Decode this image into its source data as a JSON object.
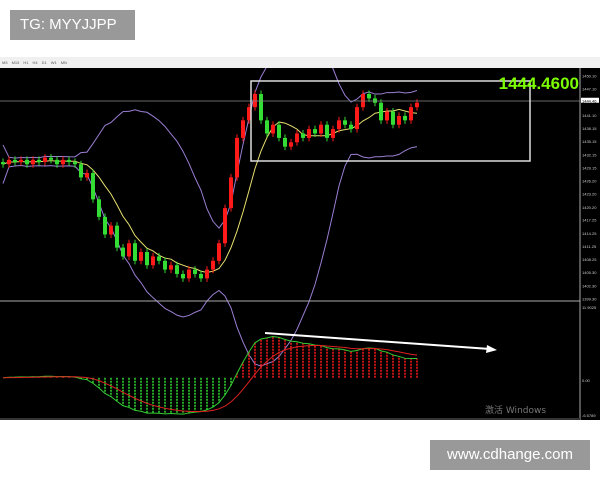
{
  "header": {
    "tag": "TG: MYYJJPP"
  },
  "footer": {
    "site": "www.cdhange.com"
  },
  "toolbar": {
    "timeframes": [
      "M5",
      "M15",
      "H1",
      "H4",
      "D1",
      "W1",
      "MN"
    ]
  },
  "watermark": "激活 Windows",
  "colors": {
    "up": "#ff1a1a",
    "down": "#33dd33",
    "price_label": "#7cfc00",
    "bands": "#9b7fd4",
    "ma": "#e8e070",
    "macd": "#33cc33",
    "signal": "#dd2222",
    "background": "#000000"
  },
  "chart_data": {
    "type": "candlestick",
    "current_price": "1444.4600",
    "price_axis": [
      "1450.10",
      "1447.10",
      "1444.46",
      "1441.10",
      "1438.15",
      "1435.15",
      "1432.15",
      "1429.15",
      "1426.20",
      "1423.20",
      "1420.20",
      "1417.25",
      "1414.25",
      "1411.25",
      "1408.25",
      "1405.30",
      "1402.30",
      "1399.30"
    ],
    "ylim": [
      1399.3,
      1450.1
    ],
    "macd_axis": [
      "11.9025",
      "0.00",
      "-6.5789"
    ],
    "macd_ylim": [
      -6.5789,
      11.9025
    ],
    "closes": [
      1430,
      1431,
      1430.5,
      1431,
      1430,
      1431,
      1430.5,
      1431.5,
      1431,
      1430,
      1431,
      1430.5,
      1430,
      1427,
      1428,
      1422,
      1418,
      1414,
      1416,
      1411,
      1409,
      1412,
      1408,
      1410,
      1407,
      1409,
      1408,
      1406,
      1407,
      1405,
      1404,
      1406,
      1405,
      1404,
      1406,
      1408,
      1412,
      1420,
      1427,
      1436,
      1440,
      1443,
      1446,
      1440,
      1437,
      1439,
      1436,
      1434,
      1435,
      1437,
      1436,
      1438,
      1437,
      1439,
      1436,
      1438,
      1440,
      1439,
      1438,
      1443,
      1446,
      1445,
      1444,
      1440,
      1442,
      1439,
      1441,
      1440,
      1443,
      1444
    ],
    "indicators": [
      "Bollinger Bands",
      "Moving Average",
      "MACD"
    ]
  }
}
